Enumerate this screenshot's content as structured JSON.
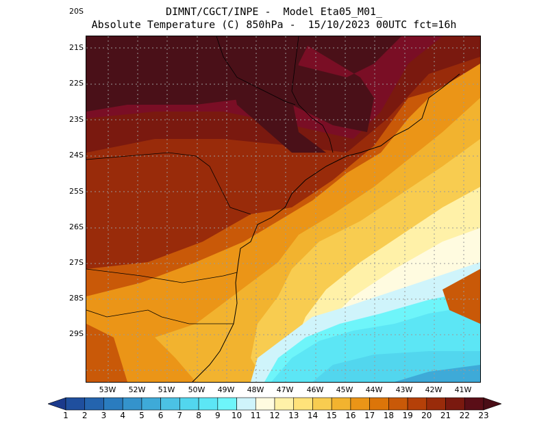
{
  "title": {
    "line1": "DIMNT/CGCT/INPE -  Model Eta05_M01_",
    "line2": "Absolute Temperature (C) 850hPa -  15/10/2023 00UTC fct=16h"
  },
  "axes": {
    "y_labels": [
      "20S",
      "21S",
      "22S",
      "23S",
      "24S",
      "25S",
      "26S",
      "27S",
      "28S",
      "29S"
    ],
    "x_labels": [
      "53W",
      "52W",
      "51W",
      "50W",
      "49W",
      "48W",
      "47W",
      "46W",
      "45W",
      "44W",
      "43W",
      "42W",
      "41W"
    ]
  },
  "colorbar": {
    "labels": [
      "1",
      "2",
      "3",
      "4",
      "5",
      "6",
      "7",
      "8",
      "9",
      "10",
      "11",
      "12",
      "13",
      "14",
      "15",
      "16",
      "17",
      "18",
      "19",
      "20",
      "21",
      "22",
      "23"
    ],
    "colors": [
      "#1b3a8c",
      "#1f4f9e",
      "#2464ae",
      "#2a7cbf",
      "#3493cc",
      "#3eaad8",
      "#4bc2e4",
      "#52d6ee",
      "#5ce6f5",
      "#6ef5fa",
      "#cff4fb",
      "#fffbe0",
      "#fff1a8",
      "#ffe27a",
      "#f8cc50",
      "#f2b32f",
      "#eb9517",
      "#dc7509",
      "#c95908",
      "#b54008",
      "#992b0a",
      "#7a190f",
      "#5a0e17"
    ],
    "under_color": "#1b3a8c",
    "over_color": "#4a0d16"
  },
  "colors": {
    "ocean_cold": "#52d6ee",
    "ocean_cyan": "#5ce6f5",
    "pale_cyan": "#cff4fb",
    "warm_dark": "#4a1018",
    "crimson": "#7a0e25"
  }
}
